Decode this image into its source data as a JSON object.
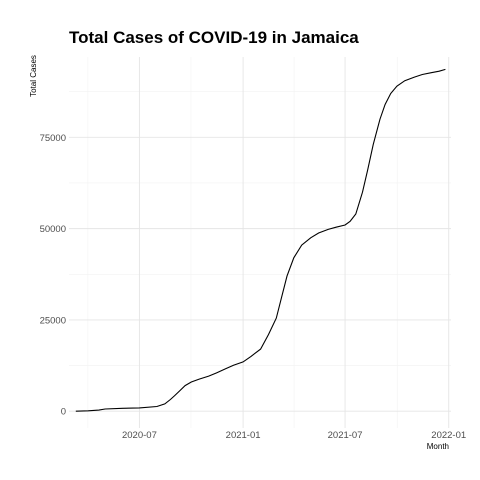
{
  "chart_data": {
    "type": "line",
    "title": "Total Cases of COVID-19 in Jamaica",
    "xlabel": "Month",
    "ylabel": "Total Cases",
    "grid": true,
    "x_ticks": [
      "2020-07",
      "2021-01",
      "2021-07",
      "2022-01"
    ],
    "x_tick_dates": [
      "2020-07-01",
      "2021-01-01",
      "2021-07-01",
      "2022-01-01"
    ],
    "y_ticks": [
      0,
      25000,
      50000,
      75000
    ],
    "y_tick_labels": [
      "0",
      "25000",
      "50000",
      "75000"
    ],
    "xlim": [
      "2020-02-27",
      "2022-01-05"
    ],
    "ylim": [
      -4600,
      97000
    ],
    "series": [
      {
        "color": "#000000",
        "x": [
          "2020-03-10",
          "2020-04-01",
          "2020-04-20",
          "2020-05-01",
          "2020-06-01",
          "2020-07-01",
          "2020-08-01",
          "2020-08-15",
          "2020-08-25",
          "2020-09-01",
          "2020-09-10",
          "2020-09-20",
          "2020-10-01",
          "2020-10-15",
          "2020-11-01",
          "2020-11-15",
          "2020-12-01",
          "2020-12-15",
          "2021-01-01",
          "2021-01-15",
          "2021-02-01",
          "2021-02-15",
          "2021-03-01",
          "2021-03-10",
          "2021-03-20",
          "2021-04-01",
          "2021-04-15",
          "2021-05-01",
          "2021-05-15",
          "2021-06-01",
          "2021-06-15",
          "2021-07-01",
          "2021-07-10",
          "2021-07-20",
          "2021-08-01",
          "2021-08-10",
          "2021-08-20",
          "2021-09-01",
          "2021-09-10",
          "2021-09-20",
          "2021-10-01",
          "2021-10-15",
          "2021-11-01",
          "2021-11-15",
          "2021-12-01",
          "2021-12-15",
          "2021-12-26"
        ],
        "values": [
          0,
          100,
          300,
          600,
          800,
          900,
          1300,
          2000,
          3200,
          4200,
          5500,
          7000,
          8000,
          8800,
          9600,
          10500,
          11600,
          12600,
          13500,
          15000,
          17000,
          21000,
          25500,
          31000,
          37000,
          42000,
          45500,
          47500,
          48800,
          49800,
          50400,
          51000,
          52000,
          54000,
          60000,
          66000,
          73000,
          80000,
          84000,
          87000,
          89000,
          90500,
          91500,
          92200,
          92700,
          93100,
          93600
        ]
      }
    ]
  }
}
